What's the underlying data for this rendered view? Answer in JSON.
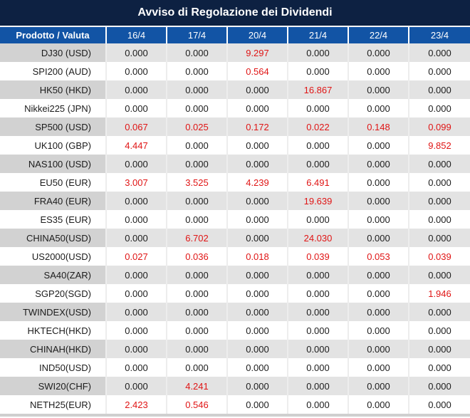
{
  "title": "Avviso di Regolazione dei Dividendi",
  "table": {
    "product_header": "Prodotto / Valuta",
    "date_headers": [
      "16/4",
      "17/4",
      "20/4",
      "21/4",
      "22/4",
      "23/4"
    ],
    "zero_value": "0.000",
    "rows": [
      {
        "product": "DJ30 (USD)",
        "values": [
          "0.000",
          "0.000",
          "9.297",
          "0.000",
          "0.000",
          "0.000"
        ]
      },
      {
        "product": "SPI200 (AUD)",
        "values": [
          "0.000",
          "0.000",
          "0.564",
          "0.000",
          "0.000",
          "0.000"
        ]
      },
      {
        "product": "HK50 (HKD)",
        "values": [
          "0.000",
          "0.000",
          "0.000",
          "16.867",
          "0.000",
          "0.000"
        ]
      },
      {
        "product": "Nikkei225 (JPN)",
        "values": [
          "0.000",
          "0.000",
          "0.000",
          "0.000",
          "0.000",
          "0.000"
        ]
      },
      {
        "product": "SP500 (USD)",
        "values": [
          "0.067",
          "0.025",
          "0.172",
          "0.022",
          "0.148",
          "0.099"
        ]
      },
      {
        "product": "UK100 (GBP)",
        "values": [
          "4.447",
          "0.000",
          "0.000",
          "0.000",
          "0.000",
          "9.852"
        ]
      },
      {
        "product": "NAS100 (USD)",
        "values": [
          "0.000",
          "0.000",
          "0.000",
          "0.000",
          "0.000",
          "0.000"
        ]
      },
      {
        "product": "EU50 (EUR)",
        "values": [
          "3.007",
          "3.525",
          "4.239",
          "6.491",
          "0.000",
          "0.000"
        ]
      },
      {
        "product": "FRA40 (EUR)",
        "values": [
          "0.000",
          "0.000",
          "0.000",
          "19.639",
          "0.000",
          "0.000"
        ]
      },
      {
        "product": "ES35 (EUR)",
        "values": [
          "0.000",
          "0.000",
          "0.000",
          "0.000",
          "0.000",
          "0.000"
        ]
      },
      {
        "product": "CHINA50(USD)",
        "values": [
          "0.000",
          "6.702",
          "0.000",
          "24.030",
          "0.000",
          "0.000"
        ]
      },
      {
        "product": "US2000(USD)",
        "values": [
          "0.027",
          "0.036",
          "0.018",
          "0.039",
          "0.053",
          "0.039"
        ]
      },
      {
        "product": "SA40(ZAR)",
        "values": [
          "0.000",
          "0.000",
          "0.000",
          "0.000",
          "0.000",
          "0.000"
        ]
      },
      {
        "product": "SGP20(SGD)",
        "values": [
          "0.000",
          "0.000",
          "0.000",
          "0.000",
          "0.000",
          "1.946"
        ]
      },
      {
        "product": "TWINDEX(USD)",
        "values": [
          "0.000",
          "0.000",
          "0.000",
          "0.000",
          "0.000",
          "0.000"
        ]
      },
      {
        "product": "HKTECH(HKD)",
        "values": [
          "0.000",
          "0.000",
          "0.000",
          "0.000",
          "0.000",
          "0.000"
        ]
      },
      {
        "product": "CHINAH(HKD)",
        "values": [
          "0.000",
          "0.000",
          "0.000",
          "0.000",
          "0.000",
          "0.000"
        ]
      },
      {
        "product": "IND50(USD)",
        "values": [
          "0.000",
          "0.000",
          "0.000",
          "0.000",
          "0.000",
          "0.000"
        ]
      },
      {
        "product": "SWI20(CHF)",
        "values": [
          "0.000",
          "4.241",
          "0.000",
          "0.000",
          "0.000",
          "0.000"
        ]
      },
      {
        "product": "NETH25(EUR)",
        "values": [
          "2.423",
          "0.546",
          "0.000",
          "0.000",
          "0.000",
          "0.000"
        ]
      }
    ]
  },
  "colors": {
    "title_bg": "#0d2142",
    "header_bg": "#1254a5",
    "alt_row_label_bg": "#d2d2d2",
    "alt_row_value_bg": "#e3e3e3",
    "zero_text": "#1c1c1c",
    "nonzero_text": "#e01515"
  }
}
